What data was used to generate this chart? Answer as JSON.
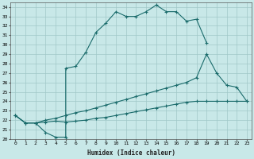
{
  "xlabel": "Humidex (Indice chaleur)",
  "xlim": [
    -0.5,
    23.5
  ],
  "ylim": [
    20,
    34.5
  ],
  "yticks": [
    20,
    21,
    22,
    23,
    24,
    25,
    26,
    27,
    28,
    29,
    30,
    31,
    32,
    33,
    34
  ],
  "xticks": [
    0,
    1,
    2,
    3,
    4,
    5,
    6,
    7,
    8,
    9,
    10,
    11,
    12,
    13,
    14,
    15,
    16,
    17,
    18,
    19,
    20,
    21,
    22,
    23
  ],
  "bg_color": "#c8e8e8",
  "grid_color": "#a0c8c8",
  "line_color": "#1a6b6b",
  "curve1_x": [
    0,
    1,
    2,
    3,
    4,
    5,
    5,
    6,
    7,
    8,
    9,
    10,
    11,
    12,
    13,
    14,
    15,
    16,
    17,
    18,
    19
  ],
  "curve1_y": [
    22.5,
    21.7,
    21.7,
    20.7,
    20.2,
    20.2,
    27.5,
    27.7,
    29.2,
    31.3,
    32.3,
    33.5,
    33.0,
    33.0,
    33.5,
    34.2,
    33.5,
    33.5,
    32.5,
    32.7,
    30.2
  ],
  "curve2_x": [
    0,
    1,
    2,
    3,
    4,
    5,
    6,
    7,
    8,
    9,
    10,
    11,
    12,
    13,
    14,
    15,
    16,
    17,
    18,
    19,
    20,
    21,
    22,
    23
  ],
  "curve2_y": [
    22.5,
    21.7,
    21.7,
    22.0,
    22.2,
    22.5,
    22.8,
    23.0,
    23.3,
    23.6,
    23.9,
    24.2,
    24.5,
    24.8,
    25.1,
    25.4,
    25.7,
    26.0,
    26.5,
    29.0,
    27.0,
    25.7,
    25.5,
    24.0
  ],
  "curve3_x": [
    0,
    1,
    2,
    3,
    4,
    5,
    6,
    7,
    8,
    9,
    10,
    11,
    12,
    13,
    14,
    15,
    16,
    17,
    18,
    19,
    20,
    21,
    22,
    23
  ],
  "curve3_y": [
    22.5,
    21.7,
    21.7,
    21.8,
    21.9,
    21.8,
    21.9,
    22.0,
    22.2,
    22.3,
    22.5,
    22.7,
    22.9,
    23.1,
    23.3,
    23.5,
    23.7,
    23.9,
    24.0,
    24.0,
    24.0,
    24.0,
    24.0,
    24.0
  ]
}
